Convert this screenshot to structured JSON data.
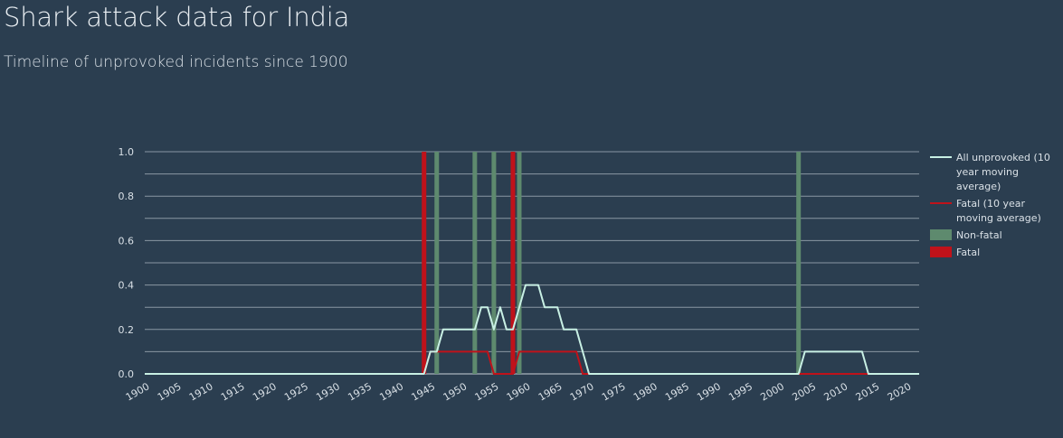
{
  "title": "Shark attack data for India",
  "subtitle": "Timeline of unprovoked incidents since 1900",
  "colors": {
    "background": "#2b3e50",
    "grid": "#8a97a3",
    "all_line": "#c8f0e4",
    "fatal_line": "#c0121a",
    "nonfatal_bar": "#5e8a6e",
    "fatal_bar": "#c0121a"
  },
  "chart_data": {
    "type": "bar+line",
    "xlim": [
      1900,
      2022
    ],
    "ylim": [
      0,
      1.0
    ],
    "x_ticks": [
      "1900",
      "1905",
      "1910",
      "1915",
      "1920",
      "1925",
      "1930",
      "1935",
      "1940",
      "1945",
      "1950",
      "1955",
      "1960",
      "1965",
      "1970",
      "1975",
      "1980",
      "1985",
      "1990",
      "1995",
      "2000",
      "2005",
      "2010",
      "2015",
      "2020"
    ],
    "y_ticks": [
      "0.0",
      "0.2",
      "0.4",
      "0.6",
      "0.8",
      "1.0"
    ],
    "bars": [
      {
        "year": 1944,
        "value": 1,
        "kind": "fatal"
      },
      {
        "year": 1946,
        "value": 1,
        "kind": "nonfatal"
      },
      {
        "year": 1952,
        "value": 1,
        "kind": "nonfatal"
      },
      {
        "year": 1955,
        "value": 1,
        "kind": "nonfatal"
      },
      {
        "year": 1958,
        "value": 1,
        "kind": "fatal"
      },
      {
        "year": 1959,
        "value": 1,
        "kind": "nonfatal"
      },
      {
        "year": 2003,
        "value": 1,
        "kind": "nonfatal"
      }
    ],
    "series": [
      {
        "name": "All unprovoked (10 year moving average)",
        "points": [
          [
            1900,
            0
          ],
          [
            1944,
            0
          ],
          [
            1945,
            0.1
          ],
          [
            1946,
            0.1
          ],
          [
            1947,
            0.2
          ],
          [
            1952,
            0.2
          ],
          [
            1953,
            0.3
          ],
          [
            1954,
            0.3
          ],
          [
            1955,
            0.2
          ],
          [
            1956,
            0.3
          ],
          [
            1957,
            0.2
          ],
          [
            1958,
            0.2
          ],
          [
            1959,
            0.3
          ],
          [
            1960,
            0.4
          ],
          [
            1962,
            0.4
          ],
          [
            1963,
            0.3
          ],
          [
            1965,
            0.3
          ],
          [
            1966,
            0.2
          ],
          [
            1968,
            0.2
          ],
          [
            1970,
            0
          ],
          [
            2003,
            0
          ],
          [
            2004,
            0.1
          ],
          [
            2013,
            0.1
          ],
          [
            2014,
            0
          ],
          [
            2022,
            0
          ]
        ]
      },
      {
        "name": "Fatal (10 year moving average)",
        "points": [
          [
            1900,
            0
          ],
          [
            1944,
            0
          ],
          [
            1945,
            0.1
          ],
          [
            1954,
            0.1
          ],
          [
            1955,
            0
          ],
          [
            1958,
            0
          ],
          [
            1959,
            0.1
          ],
          [
            1968,
            0.1
          ],
          [
            1969,
            0
          ],
          [
            2022,
            0
          ]
        ]
      }
    ],
    "legend": {
      "placement": "right",
      "entries": [
        {
          "lines": [
            "All unprovoked (10",
            "year moving",
            "average)"
          ],
          "type": "line",
          "color": "#c8f0e4"
        },
        {
          "lines": [
            "Fatal (10 year",
            "moving average)"
          ],
          "type": "line",
          "color": "#c0121a"
        },
        {
          "lines": [
            "Non-fatal"
          ],
          "type": "box",
          "color": "#5e8a6e"
        },
        {
          "lines": [
            "Fatal"
          ],
          "type": "box",
          "color": "#c0121a"
        }
      ]
    }
  }
}
